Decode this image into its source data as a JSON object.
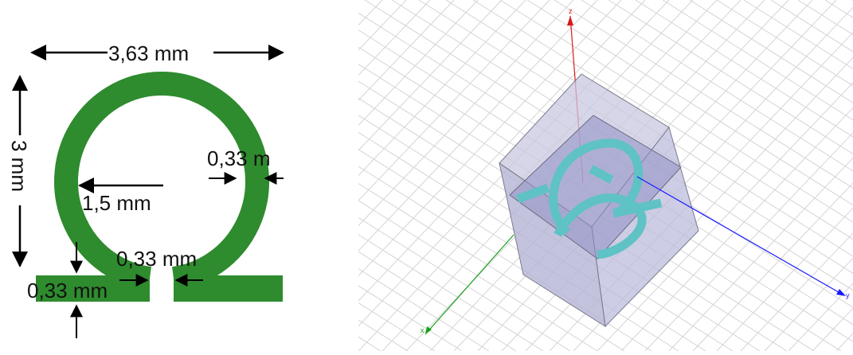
{
  "left_diagram": {
    "dimensions": {
      "width": "3,63 mm",
      "height": "3 mm",
      "radius": "1,5 mm",
      "ring_width": "0,33 m",
      "gap": "0,33 mm",
      "strip_width": "0,33 mm"
    },
    "colors": {
      "resonator": "#2e8b2e",
      "arrows": "#000000"
    }
  },
  "model_view": {
    "axes": {
      "x": "x",
      "y": "y",
      "z": "z"
    },
    "colors": {
      "grid": "#d4d4d4",
      "box": "#b8b8d8",
      "box_edge": "#7a7a8c",
      "pattern": "#5fc2c4",
      "x_axis": "#1aa01a",
      "y_axis": "#1a1aff",
      "z_axis": "#d81818"
    }
  }
}
